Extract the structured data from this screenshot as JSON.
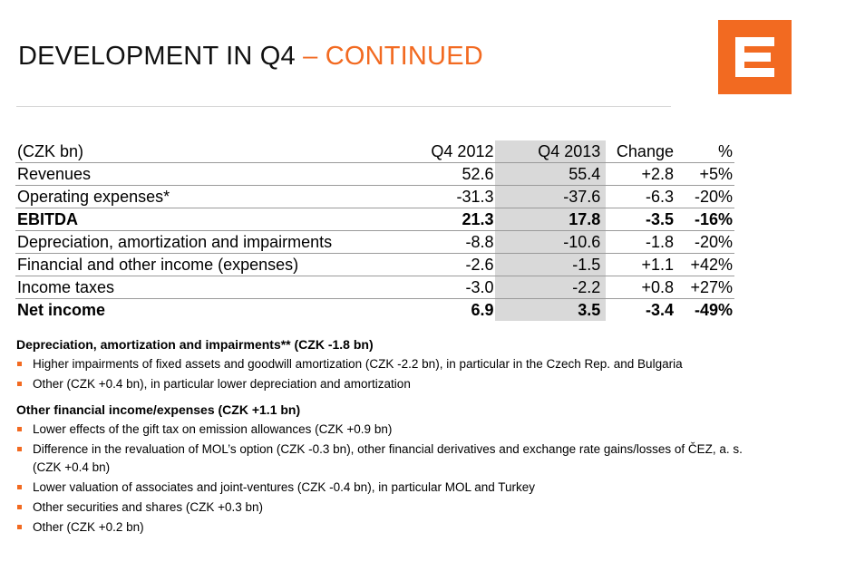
{
  "header": {
    "title_main": "DEVELOPMENT IN Q4",
    "title_sep": " – ",
    "title_accent": "CONTINUED",
    "accent_color": "#f26a21",
    "logo_icon": "cez-logo-icon"
  },
  "table": {
    "columns": [
      "(CZK bn)",
      "Q4 2012",
      "Q4 2013",
      "Change",
      "%"
    ],
    "rows": [
      {
        "label": "Revenues",
        "q4_2012": "52.6",
        "q4_2013": "55.4",
        "change": "+2.8",
        "pct": "+5%",
        "bold": false
      },
      {
        "label": "Operating expenses*",
        "q4_2012": "-31.3",
        "q4_2013": "-37.6",
        "change": "-6.3",
        "pct": "-20%",
        "bold": false
      },
      {
        "label": "EBITDA",
        "q4_2012": "21.3",
        "q4_2013": "17.8",
        "change": "-3.5",
        "pct": "-16%",
        "bold": true
      },
      {
        "label": "Depreciation, amortization and impairments",
        "q4_2012": "-8.8",
        "q4_2013": "-10.6",
        "change": "-1.8",
        "pct": "-20%",
        "bold": false
      },
      {
        "label": "Financial and other income (expenses)",
        "q4_2012": "-2.6",
        "q4_2013": "-1.5",
        "change": "+1.1",
        "pct": "+42%",
        "bold": false
      },
      {
        "label": "Income taxes",
        "q4_2012": "-3.0",
        "q4_2013": "-2.2",
        "change": "+0.8",
        "pct": "+27%",
        "bold": false
      },
      {
        "label": "Net income",
        "q4_2012": "6.9",
        "q4_2013": "3.5",
        "change": "-3.4",
        "pct": "-49%",
        "bold": true
      }
    ]
  },
  "notes": {
    "section1": {
      "title": "Depreciation, amortization and impairments** (CZK -1.8 bn)",
      "bullets": [
        "Higher impairments of fixed assets and goodwill amortization (CZK -2.2 bn), in particular in the Czech Rep. and Bulgaria",
        "Other (CZK +0.4 bn), in particular lower depreciation and amortization"
      ]
    },
    "section2": {
      "title": "Other financial income/expenses (CZK +1.1 bn)",
      "bullets": [
        "Lower effects of the gift tax on emission allowances (CZK +0.9 bn)",
        "Difference in the revaluation of MOL’s option (CZK -0.3 bn), other financial derivatives and exchange rate gains/losses of ČEZ, a. s. (CZK +0.4 bn)",
        "Lower valuation of associates and joint-ventures (CZK -0.4 bn), in particular MOL and Turkey",
        "Other securities and shares (CZK +0.3 bn)",
        "Other (CZK +0.2 bn)"
      ]
    }
  }
}
